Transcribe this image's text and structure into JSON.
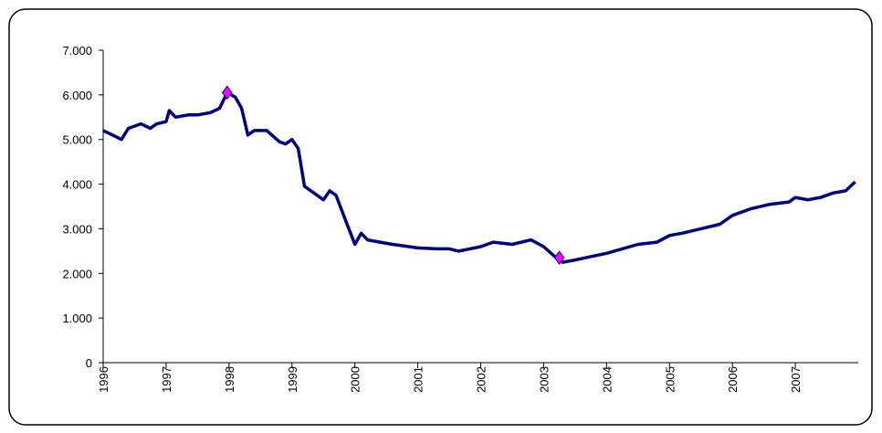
{
  "chart_data": {
    "type": "line",
    "x": [
      1996.0,
      1996.15,
      1996.29,
      1996.4,
      1996.6,
      1996.75,
      1996.85,
      1997.0,
      1997.05,
      1997.15,
      1997.35,
      1997.5,
      1997.7,
      1997.85,
      1997.97,
      1998.1,
      1998.2,
      1998.3,
      1998.4,
      1998.6,
      1998.8,
      1998.9,
      1999.0,
      1999.1,
      1999.2,
      1999.35,
      1999.5,
      1999.6,
      1999.7,
      1999.85,
      2000.0,
      2000.1,
      2000.2,
      2000.4,
      2000.6,
      2001.0,
      2001.3,
      2001.5,
      2001.65,
      2002.0,
      2002.2,
      2002.5,
      2002.8,
      2003.0,
      2003.2,
      2003.3,
      2003.5,
      2004.0,
      2004.5,
      2004.8,
      2005.0,
      2005.2,
      2005.5,
      2005.8,
      2006.0,
      2006.3,
      2006.6,
      2006.9,
      2007.0,
      2007.2,
      2007.4,
      2007.6,
      2007.8,
      2007.95
    ],
    "series": [
      {
        "color": "#000080",
        "values": [
          5200,
          5100,
          5000,
          5250,
          5350,
          5250,
          5350,
          5400,
          5650,
          5500,
          5550,
          5550,
          5600,
          5700,
          6050,
          5950,
          5700,
          5100,
          5200,
          5200,
          4950,
          4900,
          5000,
          4800,
          3950,
          3800,
          3650,
          3850,
          3750,
          3200,
          2650,
          2900,
          2750,
          2700,
          2650,
          2570,
          2550,
          2550,
          2500,
          2600,
          2700,
          2650,
          2750,
          2600,
          2350,
          2250,
          2300,
          2450,
          2650,
          2700,
          2850,
          2900,
          3000,
          3100,
          3300,
          3450,
          3550,
          3600,
          3700,
          3650,
          3700,
          3800,
          3850,
          4050
        ]
      }
    ],
    "markers": {
      "color": "#ff00ff",
      "x": [
        1997.97,
        2003.25
      ],
      "values": [
        6050,
        2350
      ]
    },
    "xlim": [
      1996,
      2008
    ],
    "xticks": [
      1996,
      1997,
      1998,
      1999,
      2000,
      2001,
      2002,
      2003,
      2004,
      2005,
      2006,
      2007
    ],
    "ylim": [
      0,
      7000
    ],
    "yticks": [
      0,
      {
        "value": 1000,
        "label": "1.000"
      },
      {
        "value": 2000,
        "label": "2.000"
      },
      {
        "value": 3000,
        "label": "3.000"
      },
      {
        "value": 4000,
        "label": "4.000"
      },
      {
        "value": 5000,
        "label": "5.000"
      },
      {
        "value": 6000,
        "label": "6.000"
      },
      {
        "value": 7000,
        "label": "7.000"
      }
    ]
  }
}
